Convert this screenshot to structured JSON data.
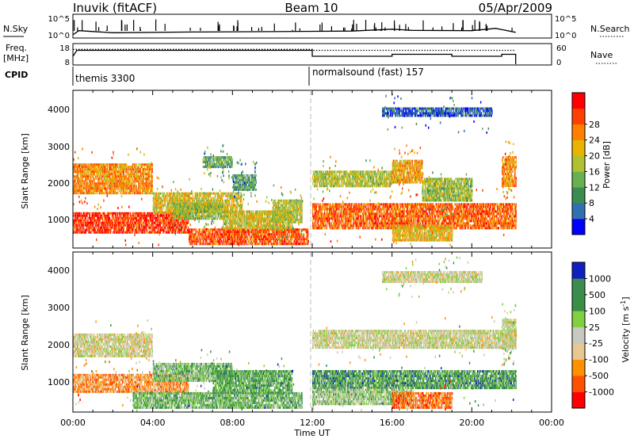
{
  "header": {
    "station": "Inuvik (fitACF)",
    "beam": "Beam 10",
    "date": "05/Apr/2009"
  },
  "nsky": {
    "label": "N.Sky",
    "ticks": [
      "10^5",
      "10^0"
    ],
    "right_ticks": [
      "10^5",
      "10^0"
    ],
    "right_label": "N.Search"
  },
  "freq": {
    "label_1": "Freq.",
    "label_2": "[MHz]",
    "ticks": [
      "18",
      "8"
    ],
    "right_ticks": [
      "60",
      "0"
    ],
    "right_label": "Nave"
  },
  "cpid": {
    "label": "CPID",
    "modes": [
      {
        "name": "themis 3300",
        "start_h": 0
      },
      {
        "name": "normalsound (fast) 157",
        "start_h": 12
      }
    ]
  },
  "xaxis": {
    "label": "Time UT",
    "ticks": [
      "00:00",
      "04:00",
      "08:00",
      "12:00",
      "16:00",
      "20:00",
      "00:00"
    ]
  },
  "power_panel": {
    "ylabel": "Slant Range [km]",
    "yticks": [
      "1000",
      "2000",
      "3000",
      "4000"
    ],
    "colorbar_label": "Power [dB]",
    "colorbar_ticks": [
      "4",
      "8",
      "12",
      "16",
      "20",
      "24",
      "28"
    ]
  },
  "velocity_panel": {
    "ylabel": "Slant Range [km]",
    "yticks": [
      "1000",
      "2000",
      "3000",
      "4000"
    ],
    "colorbar_label": "Velocity [m s",
    "colorbar_label_sup": "-1",
    "colorbar_label_end": "]",
    "colorbar_ticks": [
      "1000",
      "500",
      "100",
      "25",
      "-25",
      "-100",
      "-500",
      "-1000"
    ]
  },
  "chart_data": [
    {
      "type": "line",
      "name": "nsky",
      "x_range": [
        0,
        24
      ],
      "data_end_h": 22.2,
      "y_scale": "log",
      "ylim": [
        1,
        100000
      ],
      "series": [
        {
          "points": [
            [
              0,
              2.5
            ],
            [
              0.3,
              25
            ],
            [
              2,
              8
            ],
            [
              6,
              12
            ],
            [
              10,
              15
            ],
            [
              14,
              20
            ],
            [
              16,
              60
            ],
            [
              17,
              30
            ],
            [
              20,
              25
            ],
            [
              21.2,
              90
            ],
            [
              22.2,
              10
            ]
          ]
        }
      ]
    },
    {
      "type": "line",
      "name": "frequency",
      "x_range": [
        0,
        24
      ],
      "ylim": [
        8,
        18
      ],
      "series": [
        {
          "points": [
            [
              0,
              12
            ],
            [
              0.2,
              15
            ],
            [
              12,
              15
            ],
            [
              12,
              12
            ],
            [
              16,
              12
            ],
            [
              16,
              13
            ],
            [
              19,
              13
            ],
            [
              19,
              12
            ],
            [
              21.5,
              12
            ],
            [
              21.5,
              13
            ],
            [
              22.2,
              13
            ],
            [
              22.2,
              8
            ]
          ]
        }
      ]
    },
    {
      "type": "line",
      "name": "nave",
      "x_range": [
        0,
        24
      ],
      "ylim": [
        0,
        60
      ],
      "series": [
        {
          "points": [
            [
              0,
              45
            ],
            [
              12,
              45
            ],
            [
              12,
              42
            ],
            [
              22.2,
              42
            ]
          ]
        }
      ]
    },
    {
      "type": "heatmap",
      "name": "power",
      "x_range": [
        0,
        24
      ],
      "ylim": [
        180,
        4500
      ],
      "colorbar_range": [
        0,
        30
      ],
      "colors": [
        "#0000ff",
        "#3070b0",
        "#3c8c50",
        "#68b050",
        "#b0c030",
        "#e8b400",
        "#ff8000",
        "#ff4000",
        "#ff0000"
      ],
      "bands": [
        {
          "t0": 0.0,
          "t1": 5.8,
          "r0": 600,
          "r1": 1150,
          "level": 0.88
        },
        {
          "t0": 5.8,
          "t1": 11.8,
          "r0": 300,
          "r1": 700,
          "level": 0.82
        },
        {
          "t0": 0.0,
          "t1": 4.0,
          "r0": 1700,
          "r1": 2500,
          "level": 0.7
        },
        {
          "t0": 4.0,
          "t1": 8.5,
          "r0": 1150,
          "r1": 1700,
          "level": 0.55
        },
        {
          "t0": 5.0,
          "t1": 7.5,
          "r0": 1000,
          "r1": 1400,
          "level": 0.45
        },
        {
          "t0": 7.5,
          "t1": 11.0,
          "r0": 700,
          "r1": 1200,
          "level": 0.55
        },
        {
          "t0": 10.0,
          "t1": 11.5,
          "r0": 900,
          "r1": 1500,
          "level": 0.5
        },
        {
          "t0": 12.0,
          "t1": 22.2,
          "r0": 700,
          "r1": 1400,
          "level": 0.78
        },
        {
          "t0": 16.0,
          "t1": 19.0,
          "r0": 350,
          "r1": 800,
          "level": 0.6
        },
        {
          "t0": 12.0,
          "t1": 16.0,
          "r0": 1900,
          "r1": 2300,
          "level": 0.5
        },
        {
          "t0": 16.0,
          "t1": 17.5,
          "r0": 2000,
          "r1": 2600,
          "level": 0.65
        },
        {
          "t0": 17.5,
          "t1": 20.0,
          "r0": 1500,
          "r1": 2100,
          "level": 0.45
        },
        {
          "t0": 21.5,
          "t1": 22.2,
          "r0": 1900,
          "r1": 2700,
          "level": 0.7
        },
        {
          "t0": 15.5,
          "t1": 21.0,
          "r0": 3800,
          "r1": 4050,
          "level": 0.15
        },
        {
          "t0": 6.5,
          "t1": 8.0,
          "r0": 2400,
          "r1": 2700,
          "level": 0.35
        },
        {
          "t0": 8.0,
          "t1": 9.2,
          "r0": 1800,
          "r1": 2200,
          "level": 0.3
        }
      ]
    },
    {
      "type": "heatmap",
      "name": "velocity",
      "x_range": [
        0,
        24
      ],
      "ylim": [
        180,
        4500
      ],
      "colorbar_range": [
        -1000,
        1000
      ],
      "colors": [
        "#ff0000",
        "#ff5000",
        "#ff9000",
        "#e8c890",
        "#c8c8c0",
        "#80d040",
        "#389048",
        "#3c8c50",
        "#1020c0"
      ],
      "bands": [
        {
          "t0": 0.0,
          "t1": 5.8,
          "r0": 700,
          "r1": 1200,
          "level": 0.28
        },
        {
          "t0": 0.0,
          "t1": 4.0,
          "r0": 1700,
          "r1": 2300,
          "level": 0.47
        },
        {
          "t0": 4.0,
          "t1": 8.0,
          "r0": 1000,
          "r1": 1500,
          "level": 0.62
        },
        {
          "t0": 3.0,
          "t1": 11.5,
          "r0": 300,
          "r1": 700,
          "level": 0.66
        },
        {
          "t0": 7.0,
          "t1": 11.0,
          "r0": 700,
          "r1": 1300,
          "level": 0.72
        },
        {
          "t0": 12.0,
          "t1": 22.2,
          "r0": 800,
          "r1": 1300,
          "level": 0.75
        },
        {
          "t0": 12.0,
          "t1": 17.0,
          "r0": 400,
          "r1": 800,
          "level": 0.58
        },
        {
          "t0": 16.0,
          "t1": 19.0,
          "r0": 300,
          "r1": 700,
          "level": 0.22
        },
        {
          "t0": 12.0,
          "t1": 22.2,
          "r0": 1900,
          "r1": 2400,
          "level": 0.48
        },
        {
          "t0": 15.5,
          "t1": 20.5,
          "r0": 3700,
          "r1": 4000,
          "level": 0.48
        },
        {
          "t0": 21.5,
          "t1": 22.2,
          "r0": 1900,
          "r1": 2700,
          "level": 0.48
        }
      ]
    }
  ]
}
